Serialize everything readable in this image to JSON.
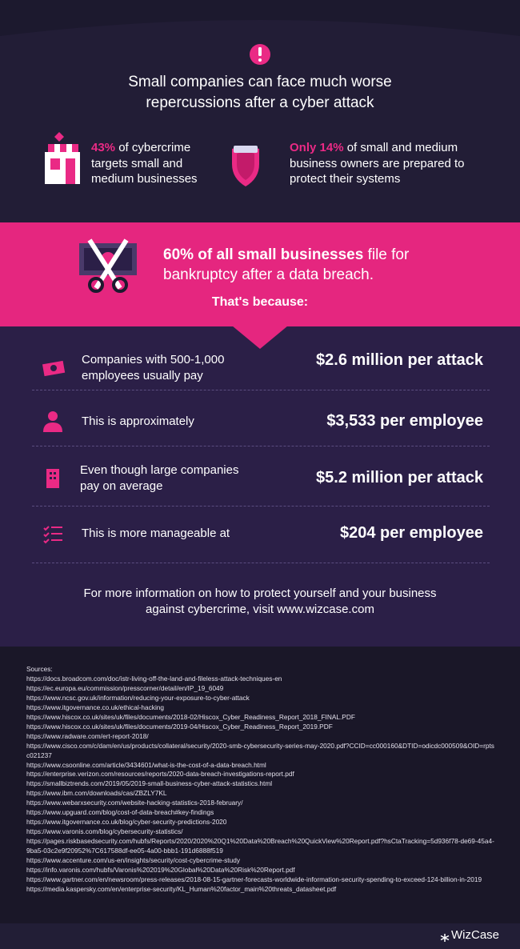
{
  "header": {
    "title": "Small companies can face much worse repercussions after a cyber attack"
  },
  "stats": [
    {
      "highlight": "43%",
      "text": "of cybercrime targets small and medium businesses"
    },
    {
      "highlight": "Only 14%",
      "text": "of small and medium business owners are prepared to protect their systems"
    }
  ],
  "banner": {
    "highlight": "60% of all small businesses",
    "text": "file for bankruptcy after a data breach.",
    "subtitle": "That's because:"
  },
  "rows": [
    {
      "label": "Companies with 500-1,000 employees usually pay",
      "value": "$2.6 million per attack"
    },
    {
      "label": "This is approximately",
      "value": "$3,533 per employee"
    },
    {
      "label": "Even though large companies pay on average",
      "value": "$5.2 million per attack"
    },
    {
      "label": "This is more manageable at",
      "value": "$204 per employee"
    }
  ],
  "footer": {
    "text": "For more information on how to protect yourself and your business against cybercrime, visit www.wizcase.com"
  },
  "sources": {
    "title": "Sources:",
    "items": [
      "https://docs.broadcom.com/doc/istr-living-off-the-land-and-fileless-attack-techniques-en",
      "https://ec.europa.eu/commission/presscorner/detail/en/IP_19_6049",
      "https://www.ncsc.gov.uk/information/reducing-your-exposure-to-cyber-attack",
      "https://www.itgovernance.co.uk/ethical-hacking",
      "https://www.hiscox.co.uk/sites/uk/files/documents/2018-02/Hiscox_Cyber_Readiness_Report_2018_FINAL.PDF",
      "https://www.hiscox.co.uk/sites/uk/files/documents/2019-04/Hiscox_Cyber_Readiness_Report_2019.PDF",
      "https://www.radware.com/ert-report-2018/",
      "https://www.cisco.com/c/dam/en/us/products/collateral/security/2020-smb-cybersecurity-series-may-2020.pdf?CCID=cc000160&DTID=odicdc000509&OID=rptsc021237",
      "https://www.csoonline.com/article/3434601/what-is-the-cost-of-a-data-breach.html",
      "https://enterprise.verizon.com/resources/reports/2020-data-breach-investigations-report.pdf",
      "https://smallbiztrends.com/2019/05/2019-small-business-cyber-attack-statistics.html",
      "https://www.ibm.com/downloads/cas/ZBZLY7KL",
      "https://www.webarxsecurity.com/website-hacking-statistics-2018-february/",
      "https://www.upguard.com/blog/cost-of-data-breach#key-findings",
      "https://www.itgovernance.co.uk/blog/cyber-security-predictions-2020",
      "https://www.varonis.com/blog/cybersecurity-statistics/",
      "https://pages.riskbasedsecurity.com/hubfs/Reports/2020/2020%20Q1%20Data%20Breach%20QuickView%20Report.pdf?hsCtaTracking=5d936f78-de69-45a4-9ba5-03c2e9f20952%7C617588df-ee05-4a00-bbb1-191d6888f519",
      "https://www.accenture.com/us-en/insights/security/cost-cybercrime-study",
      "https://info.varonis.com/hubfs/Varonis%202019%20Global%20Data%20Risk%20Report.pdf",
      "https://www.gartner.com/en/newsroom/press-releases/2018-08-15-gartner-forecasts-worldwide-information-security-spending-to-exceed-124-billion-in-2019",
      "https://media.kaspersky.com/en/enterprise-security/KL_Human%20factor_main%20threats_datasheet.pdf"
    ]
  },
  "brand": "WizCase"
}
